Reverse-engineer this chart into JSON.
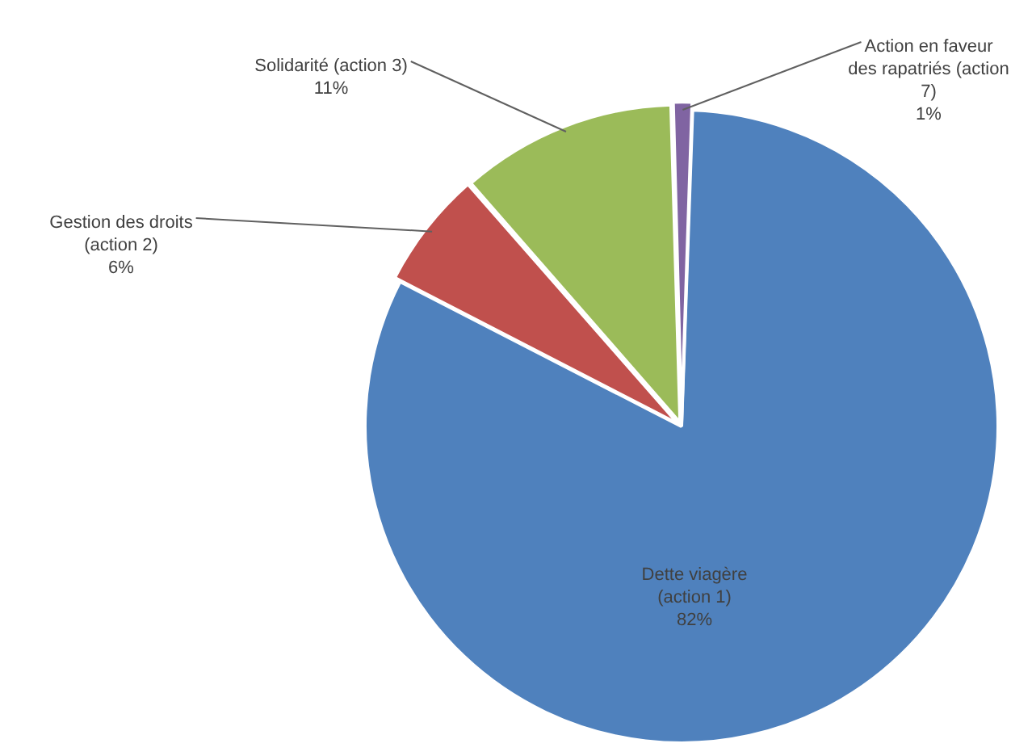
{
  "chart_data": {
    "type": "pie",
    "categories": [
      "Dette viagère (action 1)",
      "Gestion des droits (action 2)",
      "Solidarité (action 3)",
      "Action en faveur des rapatriés (action 7)"
    ],
    "values": [
      82,
      6,
      11,
      1
    ],
    "colors": [
      "#4f81bd",
      "#c0504d",
      "#9bbb59",
      "#8064a2"
    ],
    "value_labels": [
      "82%",
      "6%",
      "11%",
      "1%"
    ],
    "legend": false
  }
}
